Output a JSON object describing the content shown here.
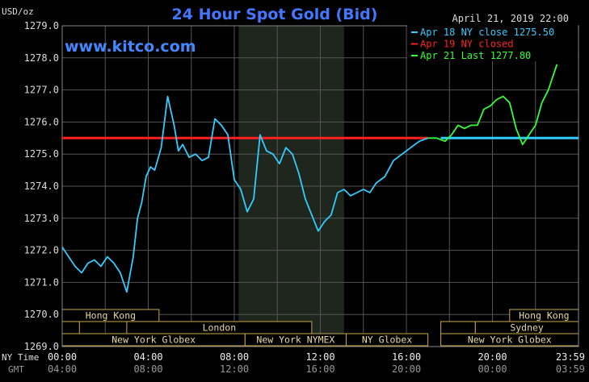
{
  "chart_data": {
    "type": "line",
    "title": "24 Hour Spot Gold (Bid)",
    "watermark": "www.kitco.com",
    "timestamp": "April 21, 2019 22:00",
    "ylabel": "USD/oz",
    "ylim": [
      1269.0,
      1279.0
    ],
    "yticks": [
      "1279.0",
      "1278.0",
      "1277.0",
      "1276.0",
      "1275.0",
      "1274.0",
      "1273.0",
      "1272.0",
      "1271.0",
      "1270.0",
      "1269.0"
    ],
    "xlim": [
      0,
      24
    ],
    "xticks_ny": [
      "00:00",
      "04:00",
      "08:00",
      "12:00",
      "16:00",
      "20:00",
      "23:59"
    ],
    "xticks_gmt": [
      "04:00",
      "08:00",
      "12:00",
      "16:00",
      "20:00",
      "00:00",
      "03:59"
    ],
    "xaxis_label_ny": "NY Time",
    "xaxis_label_gmt": "GMT",
    "reference_lines": [
      {
        "name": "Apr 19 NY closed",
        "value": 1275.5,
        "color": "#ff2020"
      },
      {
        "name": "Apr 18 NY close 1275.50",
        "value": 1275.5,
        "color": "#33ccff"
      }
    ],
    "legend": {
      "placement": "top-right",
      "entries": [
        {
          "label": "Apr 18 NY close 1275.50",
          "color": "#33ccff"
        },
        {
          "label": "Apr 19 NY closed",
          "color": "#ff2020"
        },
        {
          "label": "Apr 21 Last 1277.80",
          "color": "#33ff33"
        }
      ]
    },
    "series": [
      {
        "name": "Apr 18",
        "color": "#33ccff",
        "x": [
          0,
          0.3,
          0.6,
          0.9,
          1.2,
          1.5,
          1.8,
          2.1,
          2.4,
          2.7,
          3.0,
          3.3,
          3.5,
          3.7,
          3.9,
          4.1,
          4.3,
          4.6,
          4.9,
          5.2,
          5.4,
          5.6,
          5.9,
          6.2,
          6.5,
          6.8,
          7.1,
          7.4,
          7.7,
          8.0,
          8.3,
          8.6,
          8.9,
          9.2,
          9.5,
          9.8,
          10.1,
          10.4,
          10.7,
          11.0,
          11.3,
          11.6,
          11.9,
          12.2,
          12.5,
          12.8,
          13.1,
          13.4,
          13.7,
          14.0,
          14.3,
          14.6,
          15.0,
          15.4,
          15.8,
          16.2,
          16.6,
          17.0
        ],
        "values": [
          1272.1,
          1271.8,
          1271.5,
          1271.3,
          1271.6,
          1271.7,
          1271.5,
          1271.8,
          1271.6,
          1271.3,
          1270.7,
          1271.8,
          1273.0,
          1273.5,
          1274.3,
          1274.6,
          1274.5,
          1275.2,
          1276.8,
          1275.9,
          1275.1,
          1275.3,
          1274.9,
          1275.0,
          1274.8,
          1274.9,
          1276.1,
          1275.9,
          1275.6,
          1274.2,
          1273.9,
          1273.2,
          1273.6,
          1275.6,
          1275.1,
          1275.0,
          1274.7,
          1275.2,
          1275.0,
          1274.4,
          1273.6,
          1273.1,
          1272.6,
          1272.9,
          1273.1,
          1273.8,
          1273.9,
          1273.7,
          1273.8,
          1273.9,
          1273.8,
          1274.1,
          1274.3,
          1274.8,
          1275.0,
          1275.2,
          1275.4,
          1275.5
        ]
      },
      {
        "name": "Apr 21",
        "color": "#33ff33",
        "x": [
          17.0,
          17.4,
          17.8,
          18.1,
          18.4,
          18.7,
          19.0,
          19.3,
          19.6,
          19.9,
          20.2,
          20.5,
          20.8,
          21.1,
          21.4,
          21.7,
          22.0,
          22.3,
          22.6,
          22.9,
          23.0
        ],
        "values": [
          1275.5,
          1275.5,
          1275.4,
          1275.6,
          1275.9,
          1275.8,
          1275.9,
          1275.9,
          1276.4,
          1276.5,
          1276.7,
          1276.8,
          1276.6,
          1275.8,
          1275.3,
          1275.6,
          1275.9,
          1276.6,
          1277.0,
          1277.6,
          1277.8
        ]
      }
    ],
    "sessions": [
      {
        "label": "Hong Kong",
        "row": 0,
        "start": 0,
        "end": 4.5
      },
      {
        "label": "",
        "row": 1,
        "start": 0,
        "end": 0.8
      },
      {
        "label": "London",
        "row": 1,
        "start": 3.0,
        "end": 11.6
      },
      {
        "label": "New York Globex",
        "row": 2,
        "start": 0,
        "end": 8.5
      },
      {
        "label": "New York NYMEX",
        "row": 2,
        "start": 8.5,
        "end": 13.2
      },
      {
        "label": "NY Globex",
        "row": 2,
        "start": 13.2,
        "end": 17.0
      },
      {
        "label": "Hong Kong",
        "row": 0,
        "start": 20.8,
        "end": 24
      },
      {
        "label": "Sydney",
        "row": 1,
        "start": 19.2,
        "end": 24
      },
      {
        "label": "",
        "row": 1,
        "start": 17.6,
        "end": 19.2
      },
      {
        "label": "New York Globex",
        "row": 2,
        "start": 17.6,
        "end": 24
      }
    ],
    "shaded_band": {
      "start": 8.2,
      "end": 13.1
    },
    "grid": true
  }
}
